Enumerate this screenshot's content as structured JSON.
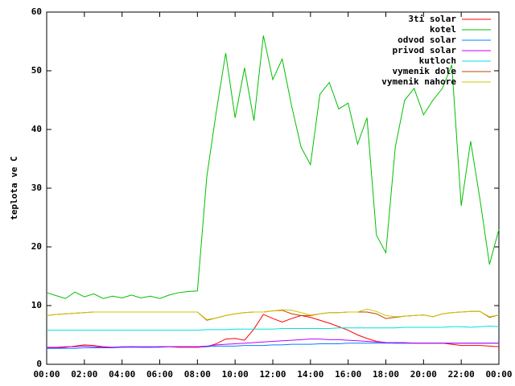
{
  "chart_data": {
    "type": "line",
    "y_label": "teplota ve C",
    "x": [
      0,
      0.5,
      1,
      1.5,
      2,
      2.5,
      3,
      3.5,
      4,
      4.5,
      5,
      5.5,
      6,
      6.5,
      7,
      7.5,
      8,
      8.5,
      9,
      9.5,
      10,
      10.5,
      11,
      11.5,
      12,
      12.5,
      13,
      13.5,
      14,
      14.5,
      15,
      15.5,
      16,
      16.5,
      17,
      17.5,
      18,
      18.5,
      19,
      19.5,
      20,
      20.5,
      21,
      21.5,
      22,
      22.5,
      23,
      23.5,
      24
    ],
    "xlim": [
      0,
      24
    ],
    "xticks": [
      {
        "value": 0,
        "label": "00:00"
      },
      {
        "value": 2,
        "label": "02:00"
      },
      {
        "value": 4,
        "label": "04:00"
      },
      {
        "value": 6,
        "label": "06:00"
      },
      {
        "value": 8,
        "label": "08:00"
      },
      {
        "value": 10,
        "label": "10:00"
      },
      {
        "value": 12,
        "label": "12:00"
      },
      {
        "value": 14,
        "label": "14:00"
      },
      {
        "value": 16,
        "label": "16:00"
      },
      {
        "value": 18,
        "label": "18:00"
      },
      {
        "value": 20,
        "label": "20:00"
      },
      {
        "value": 22,
        "label": "22:00"
      },
      {
        "value": 24,
        "label": "00:00"
      }
    ],
    "ylim": [
      0,
      60
    ],
    "yticks": [
      0,
      10,
      20,
      30,
      40,
      50,
      60
    ],
    "grid": false,
    "legend": "upper right",
    "series": [
      {
        "name": "3ti solar",
        "color": "#ff0000",
        "values": [
          2.8,
          2.8,
          2.9,
          3.1,
          3.3,
          3.2,
          3.0,
          2.9,
          2.9,
          3.0,
          2.9,
          2.9,
          3.0,
          3.0,
          2.9,
          2.9,
          2.9,
          3.0,
          3.5,
          4.3,
          4.4,
          4.1,
          6.0,
          8.5,
          7.8,
          7.2,
          7.8,
          8.3,
          8.0,
          7.5,
          7.0,
          6.4,
          5.8,
          5.0,
          4.4,
          3.9,
          3.7,
          3.6,
          3.6,
          3.6,
          3.6,
          3.6,
          3.6,
          3.4,
          3.2,
          3.2,
          3.2,
          3.1,
          3.0
        ]
      },
      {
        "name": "kotel",
        "color": "#00c000",
        "values": [
          12.2,
          11.7,
          11.2,
          12.3,
          11.5,
          12,
          11.2,
          11.6,
          11.3,
          11.8,
          11.3,
          11.6,
          11.2,
          11.8,
          12.2,
          12.4,
          12.5,
          32,
          43,
          53,
          42,
          50.5,
          41.5,
          56,
          48.5,
          52,
          44,
          37,
          34,
          46,
          48,
          43.5,
          44.5,
          37.5,
          42,
          22,
          19,
          37,
          45,
          47,
          42.5,
          45,
          47,
          51,
          27,
          38,
          28,
          17,
          23
        ]
      },
      {
        "name": "odvod solar",
        "color": "#0080ff",
        "values": [
          2.7,
          2.7,
          2.7,
          2.7,
          2.8,
          2.8,
          2.8,
          2.8,
          2.9,
          2.9,
          2.9,
          2.9,
          2.9,
          3.0,
          3.0,
          3.0,
          3.0,
          3.0,
          3.1,
          3.1,
          3.1,
          3.2,
          3.2,
          3.2,
          3.3,
          3.3,
          3.4,
          3.4,
          3.4,
          3.5,
          3.5,
          3.5,
          3.6,
          3.6,
          3.6,
          3.6,
          3.6,
          3.6,
          3.6,
          3.6,
          3.6,
          3.6,
          3.6,
          3.6,
          3.6,
          3.6,
          3.6,
          3.6,
          3.6
        ]
      },
      {
        "name": "privod solar",
        "color": "#c000ff",
        "values": [
          2.9,
          2.9,
          3.0,
          3.0,
          3.1,
          3.0,
          2.9,
          2.9,
          3.0,
          3.0,
          3.0,
          3.0,
          3.0,
          3.0,
          3.0,
          3.0,
          3.0,
          3.1,
          3.3,
          3.4,
          3.5,
          3.6,
          3.7,
          3.8,
          3.9,
          4.0,
          4.1,
          4.2,
          4.3,
          4.3,
          4.2,
          4.2,
          4.1,
          4.0,
          3.9,
          3.8,
          3.7,
          3.7,
          3.7,
          3.6,
          3.6,
          3.6,
          3.6,
          3.6,
          3.6,
          3.6,
          3.6,
          3.6,
          3.6
        ]
      },
      {
        "name": "kutloch",
        "color": "#00e0e0",
        "values": [
          5.8,
          5.8,
          5.8,
          5.8,
          5.8,
          5.8,
          5.8,
          5.8,
          5.8,
          5.8,
          5.8,
          5.8,
          5.8,
          5.8,
          5.8,
          5.8,
          5.8,
          5.9,
          5.9,
          5.9,
          6.0,
          6.0,
          6.0,
          6.0,
          6.0,
          6.1,
          6.1,
          6.1,
          6.1,
          6.1,
          6.1,
          6.2,
          6.2,
          6.2,
          6.2,
          6.2,
          6.2,
          6.2,
          6.3,
          6.3,
          6.3,
          6.3,
          6.3,
          6.4,
          6.4,
          6.3,
          6.4,
          6.5,
          6.4
        ]
      },
      {
        "name": "vymenik dole",
        "color": "#c04000",
        "values": [
          8.3,
          8.5,
          8.6,
          8.7,
          8.8,
          8.9,
          8.9,
          8.9,
          8.9,
          8.9,
          8.9,
          8.9,
          8.9,
          8.9,
          8.9,
          8.9,
          8.9,
          7.5,
          7.9,
          8.3,
          8.6,
          8.8,
          8.9,
          8.9,
          9.1,
          9.2,
          8.6,
          8.3,
          8.3,
          8.6,
          8.8,
          8.8,
          8.9,
          8.9,
          8.9,
          8.6,
          7.8,
          8.0,
          8.2,
          8.3,
          8.4,
          8.1,
          8.6,
          8.8,
          8.9,
          9.0,
          9.0,
          8.0,
          8.4
        ]
      },
      {
        "name": "vymenik nahore",
        "color": "#c8c800",
        "values": [
          8.3,
          8.5,
          8.6,
          8.7,
          8.8,
          8.9,
          8.9,
          8.9,
          8.9,
          8.9,
          8.9,
          8.9,
          8.9,
          8.9,
          8.9,
          8.9,
          8.9,
          7.6,
          7.9,
          8.3,
          8.6,
          8.8,
          8.9,
          8.9,
          9.1,
          9.3,
          9.2,
          8.8,
          8.4,
          8.6,
          8.8,
          8.8,
          8.9,
          8.9,
          9.4,
          9.0,
          8.3,
          8.1,
          8.2,
          8.3,
          8.4,
          8.1,
          8.6,
          8.8,
          8.9,
          9.0,
          9.0,
          8.1,
          8.4
        ]
      }
    ]
  }
}
